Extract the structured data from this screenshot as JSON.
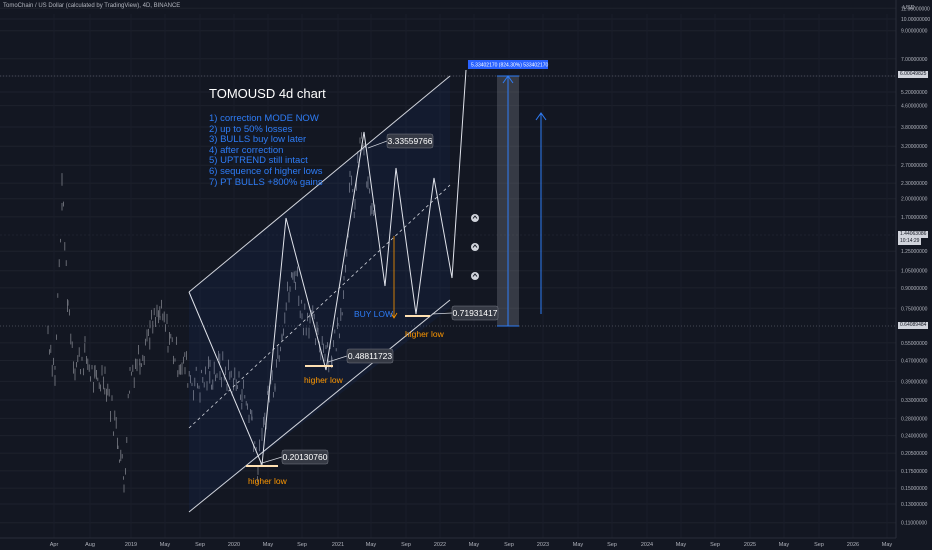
{
  "header": {
    "symbol_line": "TomoChain / US Dollar (calculated by TradingView), 4D, BINANCE",
    "unit": "USD"
  },
  "annotations": {
    "title": "TOMOUSD 4d chart",
    "notes": [
      "1) correction MODE NOW",
      "2) up to 50% losses",
      "3) BULLS buy low later",
      "4) after correction",
      "5) UPTREND still intact",
      "6) sequence of higher lows",
      "7) PT BULLS +800% gains"
    ],
    "buy_low": "BUY LOW",
    "higher_low": "higher low",
    "projection_label": "5.33402170 (824.30%) 533402170"
  },
  "price_boxes": {
    "upper": "6.00049825",
    "current": "1.44063086",
    "current_time": "10:14:29",
    "lower": "0.64089484"
  },
  "colors": {
    "background": "#131722",
    "candle": "#b2b5be",
    "accent_blue": "#2962ff",
    "orange": "#ff9800",
    "annotation_blue": "#2e7cf6",
    "label_bg": "#363a45"
  },
  "chart_data": {
    "type": "line",
    "y_scale": "log",
    "y_ticks": [
      "11.00000000",
      "10.00000000",
      "9.00000000",
      "7.00000000",
      "6.00000000",
      "5.20000000",
      "4.60000000",
      "3.80000000",
      "3.20000000",
      "2.70000000",
      "2.30000000",
      "2.00000000",
      "1.70000000",
      "1.25000000",
      "1.05000000",
      "0.90000000",
      "0.75000000",
      "0.55000000",
      "0.47000000",
      "0.39000000",
      "0.33000000",
      "0.28000000",
      "0.24000000",
      "0.20500000",
      "0.17500000",
      "0.15000000",
      "0.13000000",
      "0.11000000"
    ],
    "x_ticks": [
      "Apr",
      "Aug",
      "2019",
      "May",
      "Sep",
      "2020",
      "May",
      "Sep",
      "2021",
      "May",
      "Sep",
      "2022",
      "May",
      "Sep",
      "2023",
      "May",
      "Sep",
      "2024",
      "May",
      "Sep",
      "2025",
      "May",
      "Sep",
      "2026",
      "May"
    ],
    "lows": [
      {
        "x": "2020-04",
        "y": 0.2013076,
        "label": "0.20130760"
      },
      {
        "x": "2020-12",
        "y": 0.48811723,
        "label": "0.48811723"
      },
      {
        "x": "2022-01",
        "y": 0.71931417,
        "label": "0.71931417"
      }
    ],
    "high": {
      "x": "2021-04",
      "y": 3.33559766,
      "label": "3.33559766"
    },
    "projection_target": 5.3340217,
    "projection_percent": 824.3,
    "projected_path": [
      {
        "x": "2021-04",
        "y": 3.3
      },
      {
        "x": "2021-07",
        "y": 0.95
      },
      {
        "x": "2021-09",
        "y": 2.6
      },
      {
        "x": "2021-11",
        "y": 0.85
      },
      {
        "x": "2022-01",
        "y": 2.4
      },
      {
        "x": "2022-03",
        "y": 0.72
      },
      {
        "x": "2022-06",
        "y": 6.0
      }
    ]
  }
}
